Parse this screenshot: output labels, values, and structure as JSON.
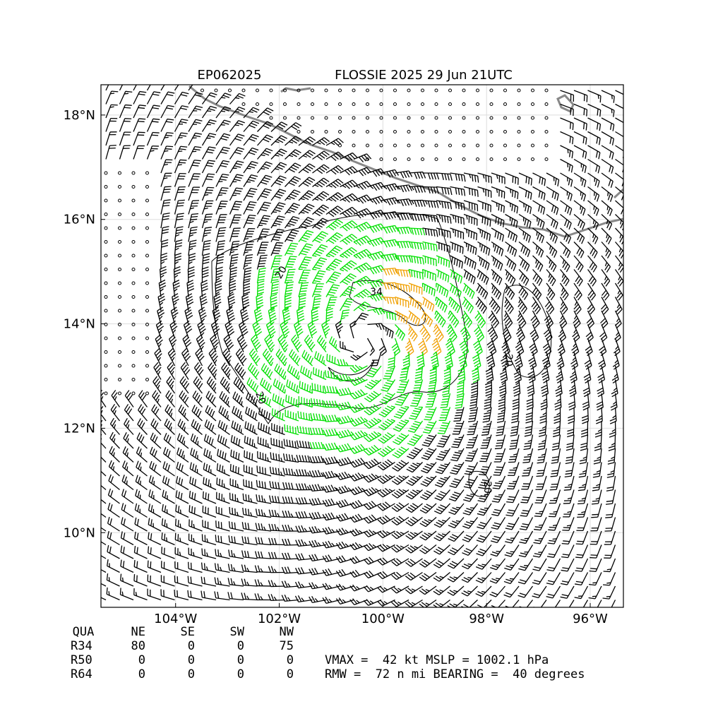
{
  "header": {
    "storm_id": "EP062025",
    "title": "FLOSSIE 2025 29 Jun 21UTC"
  },
  "map": {
    "xlim": [
      -105.44,
      -95.36
    ],
    "ylim": [
      8.57,
      18.58
    ],
    "xticks": [
      {
        "value": -104,
        "label": "104°W"
      },
      {
        "value": -102,
        "label": "102°W"
      },
      {
        "value": -100,
        "label": "100°W"
      },
      {
        "value": -98,
        "label": "98°W"
      },
      {
        "value": -96,
        "label": "96°W"
      }
    ],
    "yticks": [
      {
        "value": 10,
        "label": "10°N"
      },
      {
        "value": 12,
        "label": "12°N"
      },
      {
        "value": 14,
        "label": "14°N"
      },
      {
        "value": 16,
        "label": "16°N"
      },
      {
        "value": 18,
        "label": "18°N"
      }
    ],
    "contour_labels": [
      "20",
      "34",
      "20",
      "20",
      "20"
    ]
  },
  "table": {
    "header": [
      "QUA",
      "NE",
      "SE",
      "SW",
      "NW"
    ],
    "rows": [
      [
        "R34",
        "80",
        "0",
        "0",
        "75"
      ],
      [
        "R50",
        "0",
        "0",
        "0",
        "0"
      ],
      [
        "R64",
        "0",
        "0",
        "0",
        "0"
      ]
    ]
  },
  "stats": [
    "VMAX =  42 kt MSLP = 1002.1 hPa",
    "RMW =  72 n mi BEARING =  40 degrees"
  ]
}
